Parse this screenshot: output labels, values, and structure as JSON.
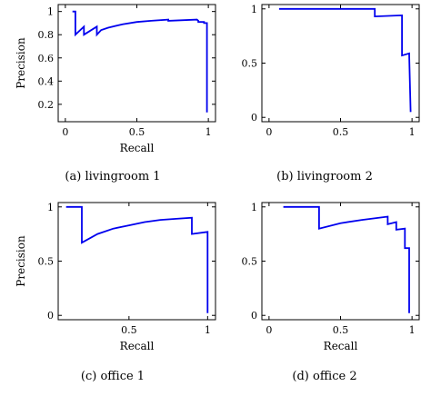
{
  "chart_data": [
    {
      "type": "line",
      "caption": "(a) livingroom 1",
      "xlabel": "Recall",
      "ylabel": "Precision",
      "xlim": [
        -0.05,
        1.05
      ],
      "ylim": [
        0.05,
        1.06
      ],
      "xticks": [
        0,
        0.5,
        1
      ],
      "xtick_labels": [
        "0",
        "0.5",
        "1"
      ],
      "yticks": [
        0.2,
        0.4,
        0.6,
        0.8,
        1
      ],
      "ytick_labels": [
        "0.2",
        "0.4",
        "0.6",
        "0.8",
        "1"
      ],
      "color": "#0000ee",
      "x": [
        0.05,
        0.07,
        0.07,
        0.13,
        0.13,
        0.22,
        0.22,
        0.25,
        0.3,
        0.4,
        0.5,
        0.6,
        0.72,
        0.72,
        0.92,
        0.93,
        0.93,
        0.97,
        0.97,
        0.99,
        0.99
      ],
      "y": [
        1.0,
        1.0,
        0.8,
        0.87,
        0.8,
        0.87,
        0.8,
        0.84,
        0.86,
        0.89,
        0.91,
        0.92,
        0.93,
        0.92,
        0.93,
        0.92,
        0.91,
        0.91,
        0.9,
        0.9,
        0.13
      ]
    },
    {
      "type": "line",
      "caption": "(b) livingroom 2",
      "xlabel": "",
      "ylabel": "",
      "xlim": [
        -0.05,
        1.05
      ],
      "ylim": [
        -0.04,
        1.04
      ],
      "xticks": [
        0,
        0.5,
        1
      ],
      "xtick_labels": [
        "0",
        "0.5",
        "1"
      ],
      "yticks": [
        0,
        0.5,
        1
      ],
      "ytick_labels": [
        "0",
        "0.5",
        "1"
      ],
      "color": "#0000ee",
      "x": [
        0.07,
        0.74,
        0.74,
        0.93,
        0.93,
        0.98,
        0.98,
        0.99
      ],
      "y": [
        1.0,
        1.0,
        0.93,
        0.94,
        0.57,
        0.59,
        0.58,
        0.05
      ]
    },
    {
      "type": "line",
      "caption": "(c) office 1",
      "xlabel": "Recall",
      "ylabel": "Precision",
      "xlim": [
        0.05,
        1.05
      ],
      "ylim": [
        -0.04,
        1.04
      ],
      "xticks": [
        0.5,
        1
      ],
      "xtick_labels": [
        "0.5",
        "1"
      ],
      "yticks": [
        0,
        0.5,
        1
      ],
      "ytick_labels": [
        "0",
        "0.5",
        "1"
      ],
      "color": "#0000ee",
      "x": [
        0.1,
        0.2,
        0.2,
        0.3,
        0.4,
        0.5,
        0.6,
        0.7,
        0.8,
        0.9,
        0.9,
        1.0,
        1.0
      ],
      "y": [
        1.0,
        1.0,
        0.67,
        0.75,
        0.8,
        0.83,
        0.86,
        0.88,
        0.89,
        0.9,
        0.75,
        0.77,
        0.02
      ]
    },
    {
      "type": "line",
      "caption": "(d) office 2",
      "xlabel": "Recall",
      "ylabel": "",
      "xlim": [
        -0.05,
        1.05
      ],
      "ylim": [
        -0.04,
        1.04
      ],
      "xticks": [
        0,
        0.5,
        1
      ],
      "xtick_labels": [
        "0",
        "0.5",
        "1"
      ],
      "yticks": [
        0,
        0.5,
        1
      ],
      "ytick_labels": [
        "0",
        "0.5",
        "1"
      ],
      "color": "#0000ee",
      "x": [
        0.1,
        0.35,
        0.35,
        0.5,
        0.65,
        0.83,
        0.83,
        0.89,
        0.89,
        0.95,
        0.95,
        0.98,
        0.98
      ],
      "y": [
        1.0,
        1.0,
        0.8,
        0.85,
        0.88,
        0.91,
        0.84,
        0.86,
        0.79,
        0.8,
        0.62,
        0.62,
        0.02
      ]
    }
  ]
}
